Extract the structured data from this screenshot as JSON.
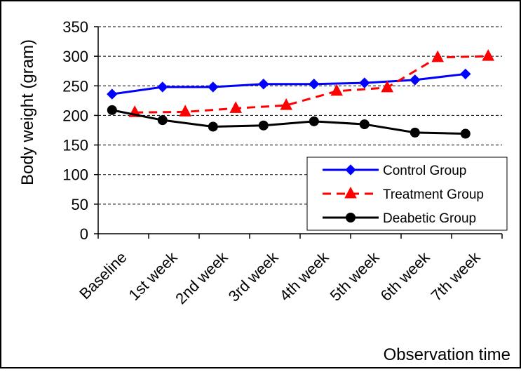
{
  "chart_data": {
    "type": "line",
    "title": "",
    "xlabel": "Observation time",
    "ylabel": "Body weight (gram)",
    "ylim": [
      0,
      350
    ],
    "ytick_step": 50,
    "y_ticks": [
      "0",
      "50",
      "100",
      "150",
      "200",
      "250",
      "300",
      "350"
    ],
    "categories": [
      "Baseline",
      "1st week",
      "2nd week",
      "3rd week",
      "4th week",
      "5th week",
      "6th week",
      "7th week"
    ],
    "grid": "horizontal dashed",
    "legend_position": "bottom-right",
    "series": [
      {
        "name": "Control Group",
        "color": "#0000ff",
        "marker": "diamond",
        "line_style": "solid",
        "x_offset": -0.5,
        "values": [
          236,
          248,
          248,
          253,
          253,
          255,
          260,
          270
        ]
      },
      {
        "name": "Treatment Group",
        "color": "#ff0000",
        "marker": "triangle",
        "line_style": "dashed",
        "x_offset": 0.5,
        "values": [
          205,
          206,
          212,
          217,
          241,
          247,
          298,
          300
        ]
      },
      {
        "name": "Deabetic Group",
        "color": "#000000",
        "marker": "circle",
        "line_style": "solid",
        "x_offset": -0.5,
        "values": [
          209,
          192,
          181,
          183,
          190,
          185,
          171,
          169
        ]
      }
    ]
  }
}
